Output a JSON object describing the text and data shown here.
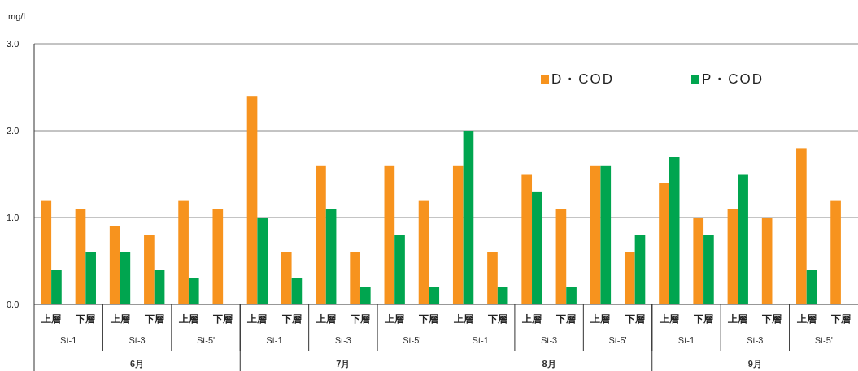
{
  "chart_data": {
    "type": "bar",
    "ylabel": "mg/L",
    "categories": [
      "上層",
      "下層",
      "上層",
      "下層",
      "上層",
      "下層",
      "上層",
      "下層",
      "上層",
      "下層",
      "上層",
      "下層",
      "上層",
      "下層",
      "上層",
      "下層",
      "上層",
      "下層",
      "上層",
      "下層",
      "上層",
      "下層",
      "上層",
      "下層"
    ],
    "series": [
      {
        "name": "D・COD",
        "color": "#f7931e",
        "values": [
          1.2,
          1.1,
          0.9,
          0.8,
          1.2,
          1.1,
          2.4,
          0.6,
          1.6,
          0.6,
          1.6,
          1.2,
          1.6,
          0.6,
          1.5,
          1.1,
          1.6,
          0.6,
          1.4,
          1.0,
          1.1,
          1.0,
          1.8,
          1.2
        ]
      },
      {
        "name": "P・COD",
        "color": "#00a54f",
        "values": [
          0.4,
          0.6,
          0.6,
          0.4,
          0.3,
          null,
          1.0,
          0.3,
          1.1,
          0.2,
          0.8,
          0.2,
          2.0,
          0.2,
          1.3,
          0.2,
          1.6,
          0.8,
          1.7,
          0.8,
          1.5,
          null,
          0.4,
          null
        ]
      }
    ],
    "ylim": [
      0,
      3
    ],
    "yticks": [
      {
        "value": 0,
        "label": "0.0"
      },
      {
        "value": 1,
        "label": "1.0"
      },
      {
        "value": 2,
        "label": "2.0"
      },
      {
        "value": 3,
        "label": "3.0"
      }
    ],
    "grid": "y",
    "legend": "top right",
    "annotations": [
      "St-1",
      "St-3",
      "St-5'",
      "St-1",
      "St-3",
      "St-5'",
      "St-1",
      "St-3",
      "St-5'",
      "St-1",
      "St-3",
      "St-5'",
      "6月",
      "7月",
      "8月",
      "9月"
    ]
  }
}
